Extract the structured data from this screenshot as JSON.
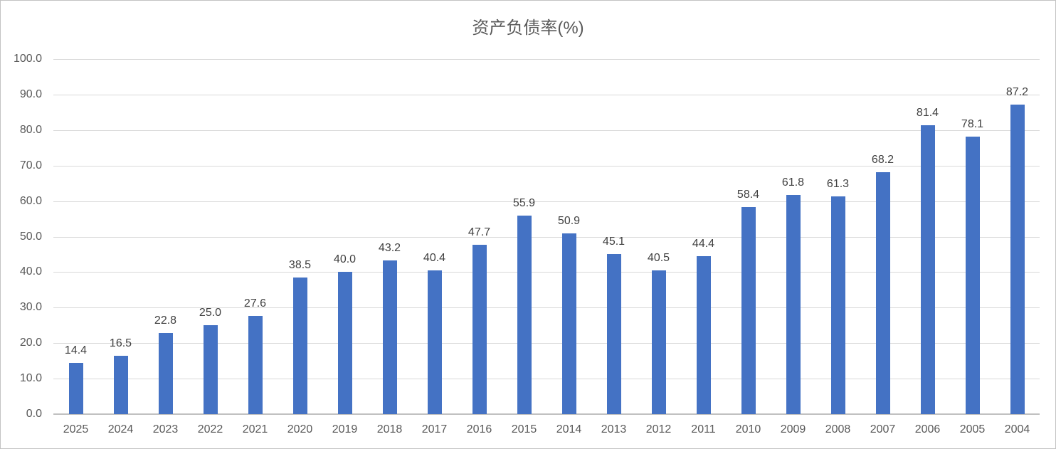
{
  "chart_data": {
    "type": "bar",
    "title": "资产负债率(%)",
    "categories": [
      "2025",
      "2024",
      "2023",
      "2022",
      "2021",
      "2020",
      "2019",
      "2018",
      "2017",
      "2016",
      "2015",
      "2014",
      "2013",
      "2012",
      "2011",
      "2010",
      "2009",
      "2008",
      "2007",
      "2006",
      "2005",
      "2004"
    ],
    "values": [
      14.4,
      16.5,
      22.8,
      25.0,
      27.6,
      38.5,
      40.0,
      43.2,
      40.4,
      47.7,
      55.9,
      50.9,
      45.1,
      40.5,
      44.4,
      58.4,
      61.8,
      61.3,
      68.2,
      81.4,
      78.1,
      87.2
    ],
    "value_labels": [
      "14.4",
      "16.5",
      "22.8",
      "25.0",
      "27.6",
      "38.5",
      "40.0",
      "43.2",
      "40.4",
      "47.7",
      "55.9",
      "50.9",
      "45.1",
      "40.5",
      "44.4",
      "58.4",
      "61.8",
      "61.3",
      "68.2",
      "81.4",
      "78.1",
      "87.2"
    ],
    "y_ticks": [
      "100.0",
      "90.0",
      "80.0",
      "70.0",
      "60.0",
      "50.0",
      "40.0",
      "30.0",
      "20.0",
      "10.0",
      "0.0"
    ],
    "ylim": [
      0,
      100
    ],
    "xlabel": "",
    "ylabel": "",
    "grid": true,
    "legend": false,
    "bar_color": "#4472C4",
    "title_color": "#595959",
    "axis_label_color": "#595959",
    "data_label_color": "#404040",
    "gridline_color": "#D9D9D9",
    "axis_line_color": "#C0C0C0"
  }
}
